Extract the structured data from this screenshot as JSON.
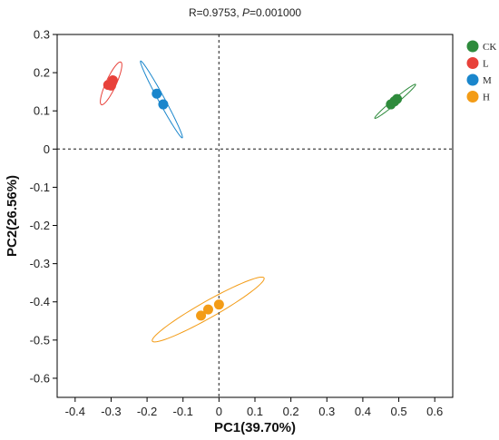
{
  "chart_data": {
    "type": "scatter",
    "subtitle_prefix": "R=0.9753, ",
    "subtitle_p_label": "P",
    "subtitle_p_value": "=0.001000",
    "xlabel": "PC1(39.70%)",
    "ylabel": "PC2(26.56%)",
    "xlim": [
      -0.45,
      0.65
    ],
    "ylim": [
      -0.65,
      0.3
    ],
    "xticks": [
      -0.4,
      -0.3,
      -0.2,
      -0.1,
      0,
      0.1,
      0.2,
      0.3,
      0.4,
      0.5,
      0.6
    ],
    "xtick_labels": [
      "-0.4",
      "-0.3",
      "-0.2",
      "-0.1",
      "0",
      "0.1",
      "0.2",
      "0.3",
      "0.4",
      "0.5",
      "0.6"
    ],
    "yticks": [
      0.3,
      0.2,
      0.1,
      0,
      -0.1,
      -0.2,
      -0.3,
      -0.4,
      -0.5,
      -0.6
    ],
    "ytick_labels": [
      "0.3",
      "0.2",
      "0.1",
      "0",
      "-0.1",
      "-0.2",
      "-0.3",
      "-0.4",
      "-0.5",
      "-0.6"
    ],
    "reference_lines": {
      "x": 0,
      "y": 0,
      "style": "dotted"
    },
    "legend_position": "top-right",
    "series": [
      {
        "name": "CK",
        "color": "#2e8b3c",
        "points": [
          [
            0.478,
            0.117
          ],
          [
            0.488,
            0.125
          ],
          [
            0.495,
            0.131
          ]
        ],
        "ellipse": {
          "cx": 0.49,
          "cy": 0.125,
          "rx": 0.072,
          "ry": 0.0065,
          "angle_deg": 38
        }
      },
      {
        "name": "L",
        "color": "#e8413a",
        "points": [
          [
            -0.308,
            0.168
          ],
          [
            -0.3,
            0.166
          ],
          [
            -0.295,
            0.18
          ]
        ],
        "ellipse": {
          "cx": -0.3,
          "cy": 0.172,
          "rx": 0.062,
          "ry": 0.014,
          "angle_deg": 64
        }
      },
      {
        "name": "M",
        "color": "#1a86cc",
        "points": [
          [
            -0.173,
            0.145
          ],
          [
            -0.155,
            0.117
          ]
        ],
        "ellipse": {
          "cx": -0.16,
          "cy": 0.13,
          "rx": 0.116,
          "ry": 0.0085,
          "angle_deg": -60
        }
      },
      {
        "name": "H",
        "color": "#f39c17",
        "points": [
          [
            -0.05,
            -0.436
          ],
          [
            -0.03,
            -0.42
          ],
          [
            0.0,
            -0.407
          ]
        ],
        "ellipse": {
          "cx": -0.03,
          "cy": -0.42,
          "rx": 0.176,
          "ry": 0.022,
          "angle_deg": 28
        }
      }
    ]
  }
}
